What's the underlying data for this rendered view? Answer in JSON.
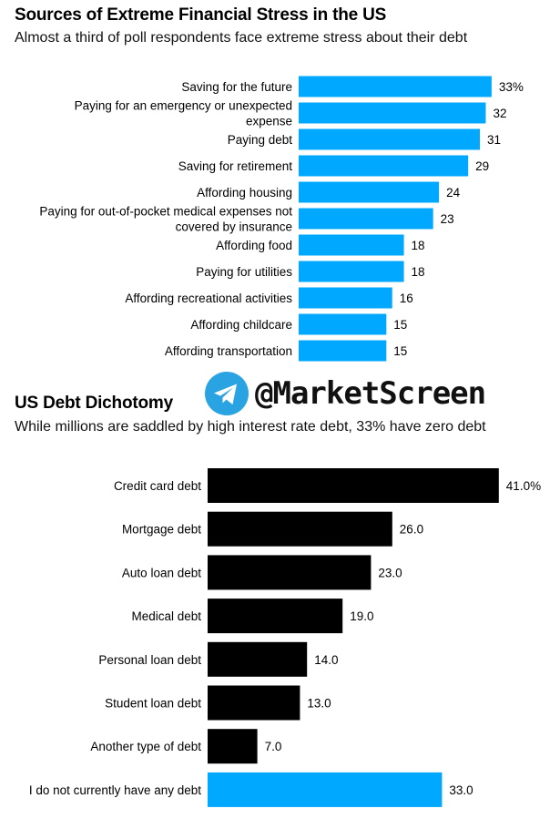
{
  "watermark": {
    "text": "@MarketScreen",
    "icon": "telegram-icon",
    "icon_color": "#2AA3E3"
  },
  "colors": {
    "blue": "#00A8FF",
    "black": "#000000"
  },
  "chart_data": [
    {
      "type": "bar",
      "orientation": "horizontal",
      "title": "Sources of Extreme Financial Stress in the US",
      "subtitle": "Almost a third of poll respondents face extreme stress about their debt",
      "categories": [
        "Saving for the future",
        "Paying for an emergency or unexpected expense",
        "Paying debt",
        "Saving for retirement",
        "Affording housing",
        "Paying for out-of-pocket medical expenses not covered by insurance",
        "Affording food",
        "Paying for utilities",
        "Affording recreational activities",
        "Affording childcare",
        "Affording transportation"
      ],
      "label_lines": [
        [
          "Saving for the future"
        ],
        [
          "Paying for an emergency or unexpected",
          "expense"
        ],
        [
          "Paying debt"
        ],
        [
          "Saving for retirement"
        ],
        [
          "Affording housing"
        ],
        [
          "Paying for out-of-pocket medical expenses not",
          "covered by insurance"
        ],
        [
          "Affording food"
        ],
        [
          "Paying for utilities"
        ],
        [
          "Affording recreational activities"
        ],
        [
          "Affording childcare"
        ],
        [
          "Affording transportation"
        ]
      ],
      "values": [
        33,
        32,
        31,
        29,
        24,
        23,
        18,
        18,
        16,
        15,
        15
      ],
      "value_labels": [
        "33%",
        "32",
        "31",
        "29",
        "24",
        "23",
        "18",
        "18",
        "16",
        "15",
        "15"
      ],
      "bar_colors": [
        "blue",
        "blue",
        "blue",
        "blue",
        "blue",
        "blue",
        "blue",
        "blue",
        "blue",
        "blue",
        "blue"
      ]
    },
    {
      "type": "bar",
      "orientation": "horizontal",
      "title": "US Debt Dichotomy",
      "subtitle": "While millions are saddled by high interest rate debt, 33% have zero debt",
      "categories": [
        "Credit card debt",
        "Mortgage debt",
        "Auto loan debt",
        "Medical debt",
        "Personal loan debt",
        "Student loan debt",
        "Another type of debt",
        "I do not currently have any debt"
      ],
      "label_lines": [
        [
          "Credit card debt"
        ],
        [
          "Mortgage debt"
        ],
        [
          "Auto loan debt"
        ],
        [
          "Medical debt"
        ],
        [
          "Personal loan debt"
        ],
        [
          "Student loan debt"
        ],
        [
          "Another type of debt"
        ],
        [
          "I do not currently have any debt"
        ]
      ],
      "values": [
        41.0,
        26.0,
        23.0,
        19.0,
        14.0,
        13.0,
        7.0,
        33.0
      ],
      "value_labels": [
        "41.0%",
        "26.0",
        "23.0",
        "19.0",
        "14.0",
        "13.0",
        "7.0",
        "33.0"
      ],
      "bar_colors": [
        "black",
        "black",
        "black",
        "black",
        "black",
        "black",
        "black",
        "blue"
      ]
    }
  ]
}
